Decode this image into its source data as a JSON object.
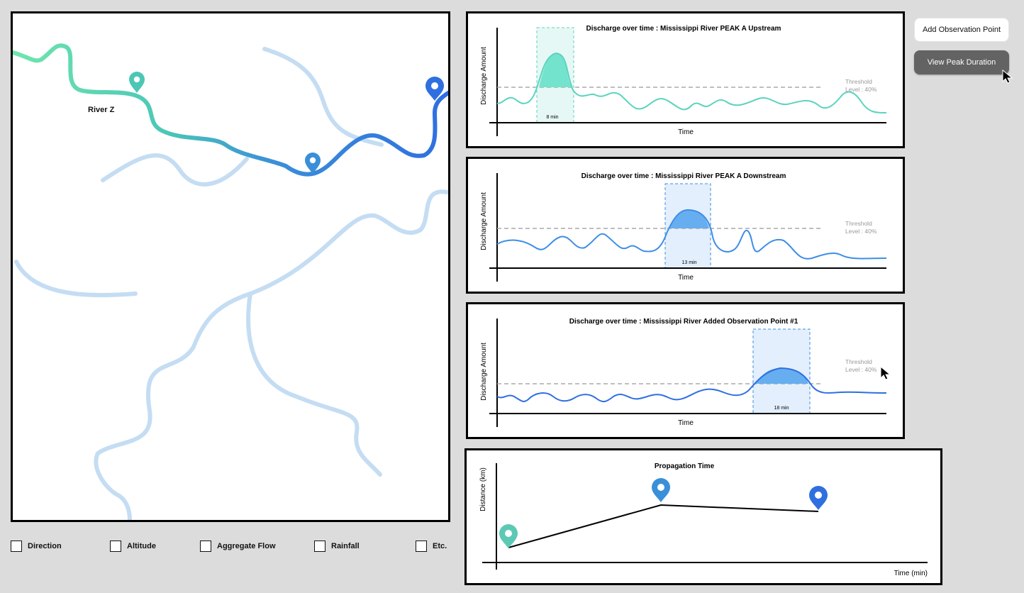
{
  "map": {
    "river_label": "River Z"
  },
  "charts": [
    {
      "title": "Discharge over time : Mississippi River PEAK A Upstream",
      "ylabel": "Discharge Amount",
      "xlabel": "Time",
      "threshold_label_1": "Threshold",
      "threshold_label_2": "Level : 40%",
      "duration_label": "8 min",
      "color": "#5cd3be"
    },
    {
      "title": "Discharge over time : Mississippi River PEAK A Downstream",
      "ylabel": "Discharge Amount",
      "xlabel": "Time",
      "threshold_label_1": "Threshold",
      "threshold_label_2": "Level : 40%",
      "duration_label": "13 min",
      "color": "#3d8ee6"
    },
    {
      "title": "Discharge over time : Mississippi River Added Observation Point #1",
      "ylabel": "Discharge Amount",
      "xlabel": "Time",
      "threshold_label_1": "Threshold",
      "threshold_label_2": "Level : 40%",
      "duration_label": "18 min",
      "color": "#2f6fe0"
    }
  ],
  "propagation": {
    "title": "Propagation Time",
    "ylabel": "Distance (km)",
    "xlabel": "Time (min)"
  },
  "buttons": {
    "add_observation": "Add Observation Point",
    "view_peak_duration": "View Peak Duration"
  },
  "filters": [
    {
      "label": "Direction",
      "checked": false
    },
    {
      "label": "Altitude",
      "checked": false
    },
    {
      "label": "Aggregate Flow",
      "checked": false
    },
    {
      "label": "Rainfall",
      "checked": false
    },
    {
      "label": "Etc.",
      "checked": false
    }
  ],
  "colors": {
    "teal_marker": "#5cc9b5",
    "mid_marker": "#3a8fd9",
    "blue_marker": "#2f6fe0",
    "light_river": "#c4ddf3",
    "peak_fill_teal": "#e6f8f5",
    "peak_fill_blue": "#e3effc"
  }
}
